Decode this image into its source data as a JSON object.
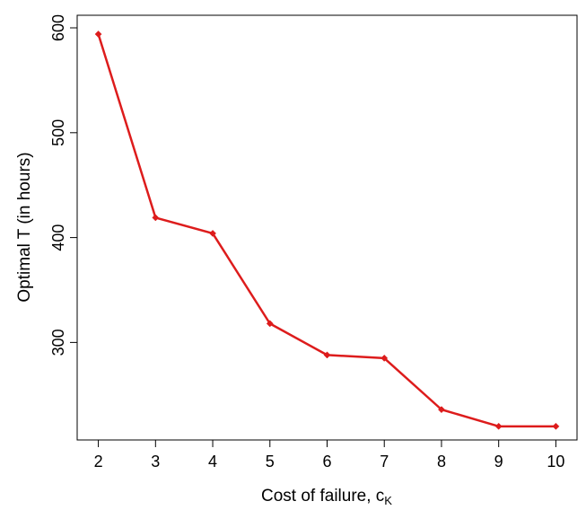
{
  "chart_data": {
    "type": "line",
    "title": "",
    "xlabel": "Cost of failure, c",
    "xlabel_subscript": "K",
    "ylabel": "Optimal T (in hours)",
    "x": [
      2,
      3,
      4,
      5,
      6,
      7,
      8,
      9,
      10
    ],
    "series": [
      {
        "values": [
          594,
          419,
          404,
          318,
          288,
          285,
          236,
          220,
          220
        ],
        "color": "#dd1c1c",
        "marker": "diamond"
      }
    ],
    "xlim": [
      1.63,
      10.37
    ],
    "ylim": [
      207,
      612
    ],
    "xticks": [
      "2",
      "3",
      "4",
      "5",
      "6",
      "7",
      "8",
      "9",
      "10"
    ],
    "yticks": [
      "300",
      "400",
      "500",
      "600"
    ],
    "grid": false,
    "legend": "none"
  }
}
